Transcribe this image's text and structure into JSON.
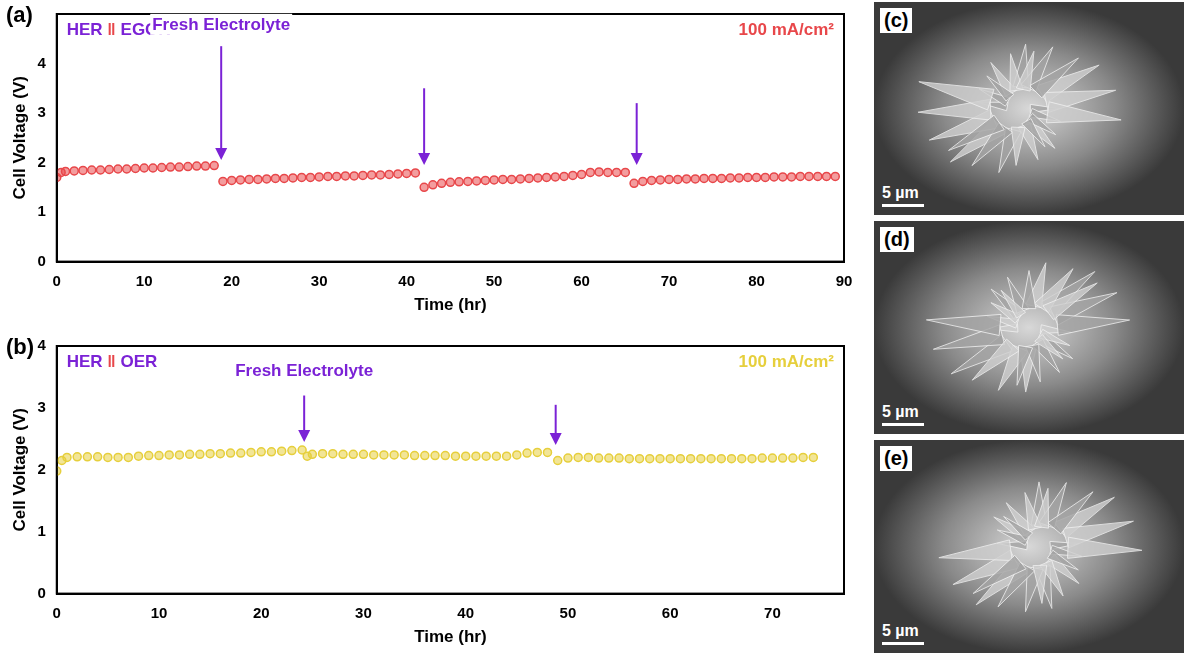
{
  "chart_data": [
    {
      "type": "line",
      "panel": "(a)",
      "x_label": "Time (hr)",
      "y_label": "Cell Voltage (V)",
      "xlim": [
        0,
        90
      ],
      "xticks": [
        0,
        10,
        20,
        30,
        40,
        50,
        60,
        70,
        80,
        90
      ],
      "ylim": [
        0,
        5
      ],
      "yticks": [
        0,
        1,
        2,
        3,
        4
      ],
      "grid": false,
      "annotations": [
        {
          "text": "HER ǁ EGOR",
          "position": "top-left",
          "color": "#7b22d6"
        },
        {
          "text": "100 mA/cm²",
          "position": "top-right",
          "color": "#e8474a"
        },
        {
          "text": "Fresh Electrolyte",
          "x": 18.8,
          "y": 4.6,
          "color": "#7b22d6"
        }
      ],
      "arrows": [
        {
          "x": 18.8,
          "from": 4.35,
          "to": 2.05
        },
        {
          "x": 42,
          "from": 3.5,
          "to": 1.95
        },
        {
          "x": 66.3,
          "from": 3.2,
          "to": 1.95
        }
      ],
      "series": [
        {
          "name": "HER ǁ EGOR",
          "color": "#e8474a",
          "marker": "circle",
          "line_style": "none",
          "x": [
            0,
            0.5,
            1,
            2,
            3,
            4,
            5,
            6,
            7,
            8,
            9,
            10,
            11,
            12,
            13,
            14,
            15,
            16,
            17,
            18,
            19,
            20,
            21,
            22,
            23,
            24,
            25,
            26,
            27,
            28,
            29,
            30,
            31,
            32,
            33,
            34,
            35,
            36,
            37,
            38,
            39,
            40,
            41,
            42,
            43,
            44,
            45,
            46,
            47,
            48,
            49,
            50,
            51,
            52,
            53,
            54,
            55,
            56,
            57,
            58,
            59,
            60,
            61,
            62,
            63,
            64,
            65,
            66,
            67,
            68,
            69,
            70,
            71,
            72,
            73,
            74,
            75,
            76,
            77,
            78,
            79,
            80,
            81,
            82,
            83,
            84,
            85,
            86,
            87,
            88,
            89
          ],
          "values": [
            1.7,
            1.8,
            1.82,
            1.83,
            1.84,
            1.85,
            1.85,
            1.86,
            1.87,
            1.87,
            1.88,
            1.89,
            1.89,
            1.9,
            1.91,
            1.91,
            1.92,
            1.93,
            1.93,
            1.94,
            1.62,
            1.64,
            1.65,
            1.66,
            1.66,
            1.67,
            1.68,
            1.68,
            1.69,
            1.7,
            1.7,
            1.71,
            1.72,
            1.72,
            1.73,
            1.73,
            1.74,
            1.75,
            1.75,
            1.76,
            1.77,
            1.78,
            1.79,
            1.5,
            1.55,
            1.58,
            1.6,
            1.61,
            1.62,
            1.63,
            1.64,
            1.65,
            1.66,
            1.66,
            1.67,
            1.68,
            1.69,
            1.7,
            1.71,
            1.72,
            1.74,
            1.76,
            1.8,
            1.81,
            1.8,
            1.8,
            1.8,
            1.58,
            1.62,
            1.64,
            1.65,
            1.66,
            1.66,
            1.67,
            1.67,
            1.68,
            1.68,
            1.68,
            1.69,
            1.69,
            1.7,
            1.7,
            1.7,
            1.71,
            1.71,
            1.71,
            1.72,
            1.72,
            1.72,
            1.72,
            1.72
          ]
        }
      ]
    },
    {
      "type": "line",
      "panel": "(b)",
      "x_label": "Time (hr)",
      "y_label": "Cell Voltage (V)",
      "xlim": [
        0,
        77
      ],
      "xticks": [
        0,
        10,
        20,
        30,
        40,
        50,
        60,
        70
      ],
      "ylim": [
        0,
        4
      ],
      "yticks": [
        0,
        1,
        2,
        3,
        4
      ],
      "grid": false,
      "annotations": [
        {
          "text": "HER ǁ OER",
          "position": "top-left",
          "color": "#7b22d6"
        },
        {
          "text": "100 mA/cm²",
          "position": "top-right",
          "color": "#e6cf3c"
        },
        {
          "text": "Fresh Electrolyte",
          "x": 24.2,
          "y": 3.45,
          "color": "#7b22d6"
        }
      ],
      "arrows": [
        {
          "x": 24.2,
          "from": 3.2,
          "to": 2.45
        },
        {
          "x": 48.8,
          "from": 3.05,
          "to": 2.4
        }
      ],
      "series": [
        {
          "name": "HER ǁ OER",
          "color": "#e6cf3c",
          "marker": "circle",
          "line_style": "none",
          "x": [
            0,
            0.5,
            1,
            2,
            3,
            4,
            5,
            6,
            7,
            8,
            9,
            10,
            11,
            12,
            13,
            14,
            15,
            16,
            17,
            18,
            19,
            20,
            21,
            22,
            23,
            24,
            24.5,
            25,
            26,
            27,
            28,
            29,
            30,
            31,
            32,
            33,
            34,
            35,
            36,
            37,
            38,
            39,
            40,
            41,
            42,
            43,
            44,
            45,
            46,
            47,
            48,
            49,
            50,
            51,
            52,
            53,
            54,
            55,
            56,
            57,
            58,
            59,
            60,
            61,
            62,
            63,
            64,
            65,
            66,
            67,
            68,
            69,
            70,
            71,
            72,
            73,
            74
          ],
          "values": [
            1.98,
            2.15,
            2.2,
            2.21,
            2.21,
            2.21,
            2.2,
            2.2,
            2.2,
            2.22,
            2.23,
            2.23,
            2.24,
            2.24,
            2.25,
            2.25,
            2.26,
            2.26,
            2.27,
            2.27,
            2.28,
            2.29,
            2.29,
            2.3,
            2.31,
            2.32,
            2.22,
            2.25,
            2.26,
            2.26,
            2.25,
            2.25,
            2.25,
            2.24,
            2.24,
            2.24,
            2.24,
            2.23,
            2.23,
            2.23,
            2.23,
            2.22,
            2.22,
            2.22,
            2.22,
            2.22,
            2.22,
            2.24,
            2.27,
            2.28,
            2.28,
            2.15,
            2.19,
            2.2,
            2.2,
            2.19,
            2.19,
            2.19,
            2.18,
            2.18,
            2.18,
            2.18,
            2.18,
            2.18,
            2.18,
            2.18,
            2.18,
            2.18,
            2.18,
            2.18,
            2.18,
            2.19,
            2.19,
            2.19,
            2.19,
            2.2,
            2.2
          ]
        }
      ]
    }
  ],
  "images": [
    {
      "label": "(c)",
      "scale_bar": "5 µm"
    },
    {
      "label": "(d)",
      "scale_bar": "5 µm"
    },
    {
      "label": "(e)",
      "scale_bar": "5 µm"
    }
  ]
}
